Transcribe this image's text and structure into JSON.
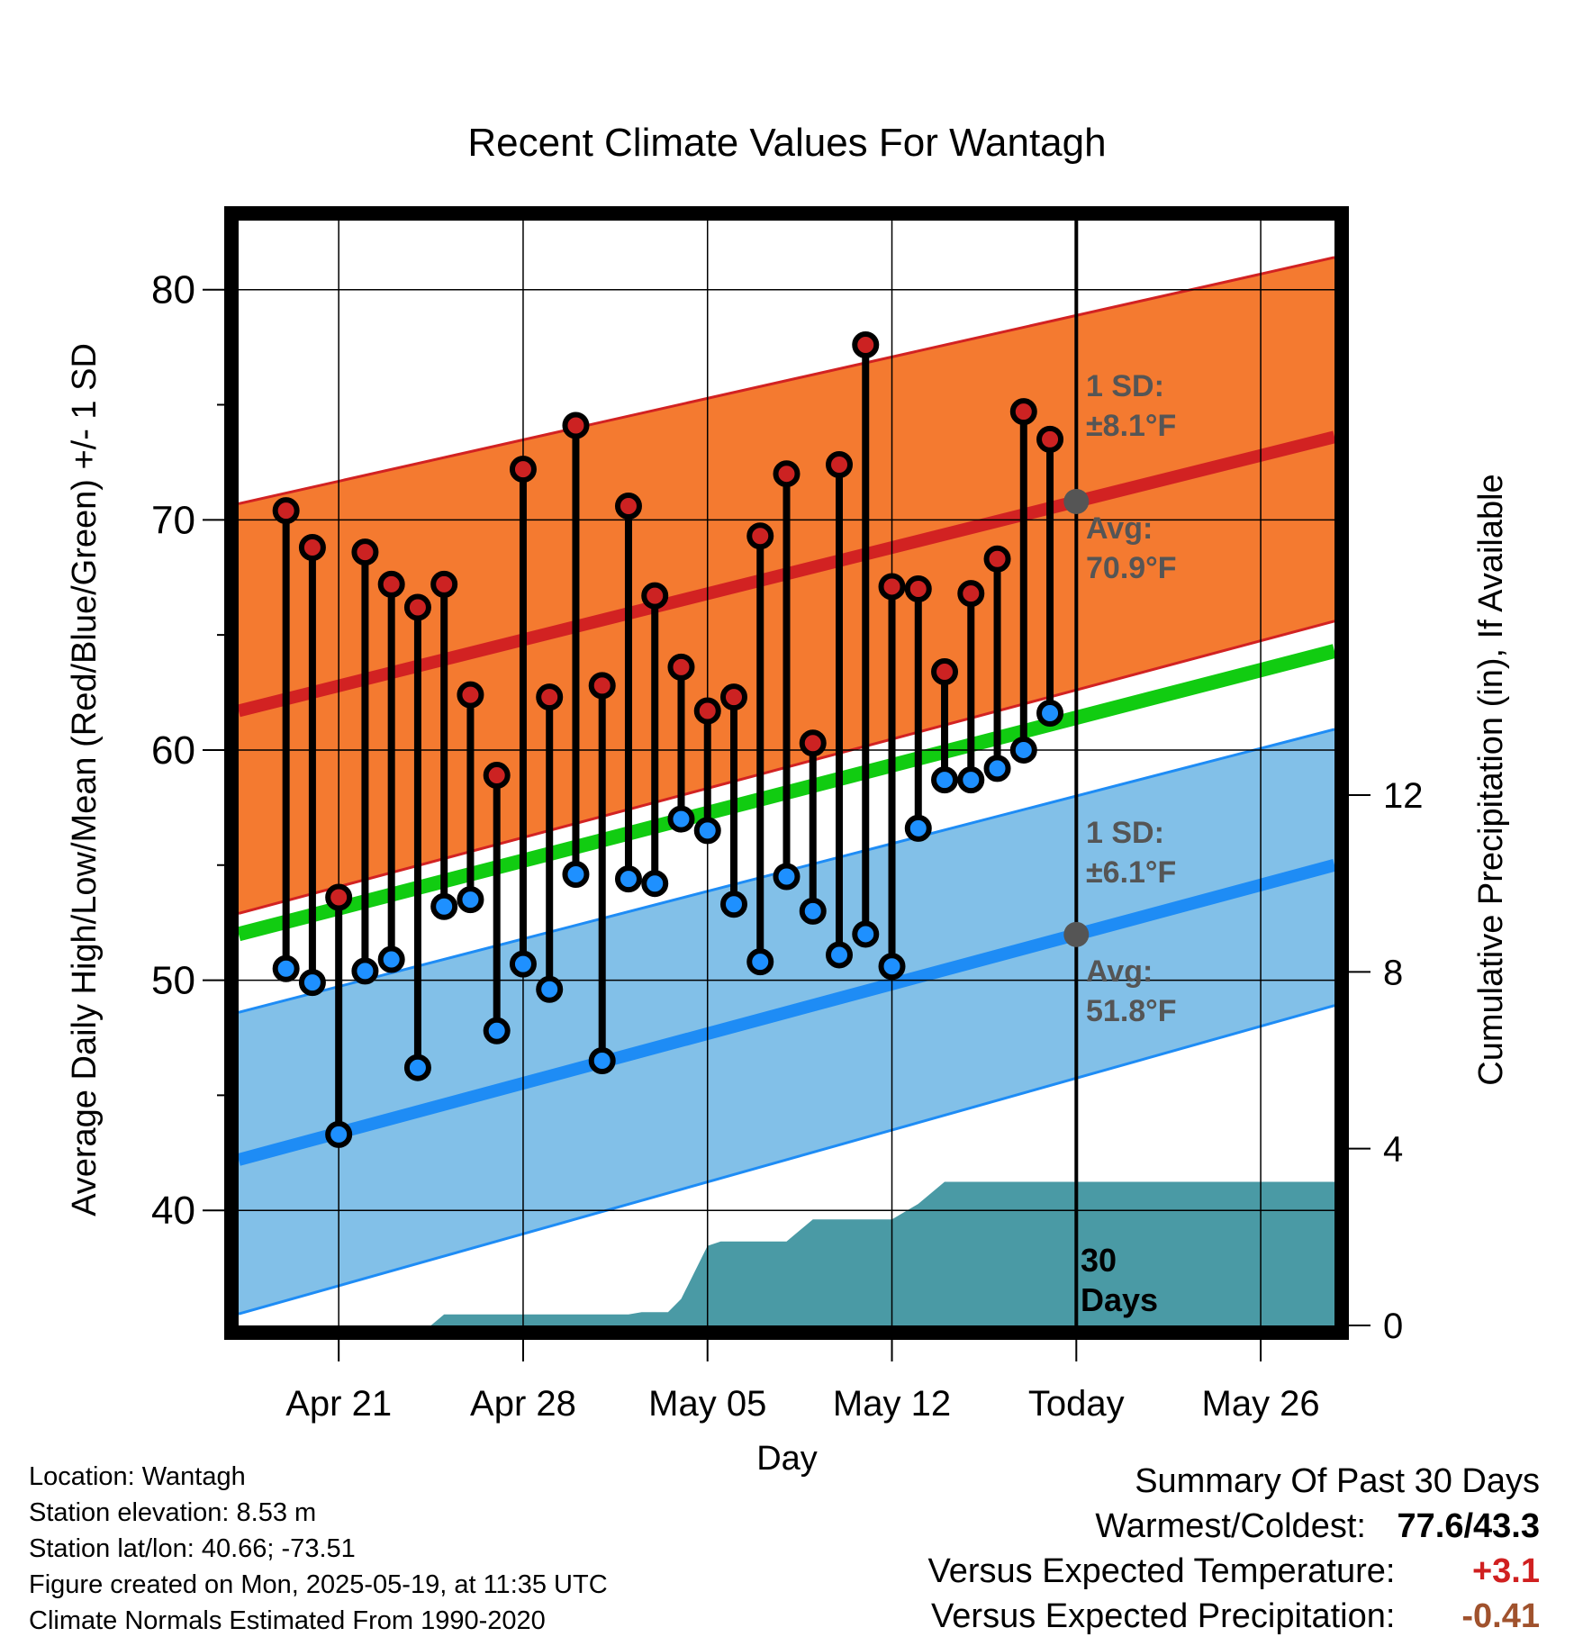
{
  "colors": {
    "high_marker": "#cc2222",
    "low_marker": "#1e90ff",
    "high_band": "#f47a30",
    "high_avg": "#d22222",
    "low_band": "#82c0e8",
    "low_avg": "#1e8cf5",
    "mean_line": "#11cc11",
    "precip_fill": "#4a9aa5",
    "today_dot": "#555555",
    "warm_anomaly": "#d02020",
    "precip_anomaly": "#a0522d"
  },
  "chart_data": {
    "type": "line",
    "title": "Recent Climate Values For Wantagh",
    "xlabel": "Day",
    "ylabel": "Average Daily High/Low/Mean (Red/Blue/Green) +/- 1 SD",
    "y2label": "Cumulative Precipitation (in), If Available",
    "ylim": [
      35,
      83
    ],
    "y2lim": [
      0,
      25
    ],
    "yticks": [
      40,
      50,
      60,
      70,
      80
    ],
    "y2ticks": [
      0,
      4,
      8,
      12
    ],
    "x_range_days": [
      -1.8,
      39.8
    ],
    "xticks": [
      {
        "day": 2,
        "label": "Apr 21"
      },
      {
        "day": 9,
        "label": "Apr 28"
      },
      {
        "day": 16,
        "label": "May 05"
      },
      {
        "day": 23,
        "label": "May 12"
      },
      {
        "day": 30,
        "label": "Today"
      },
      {
        "day": 37,
        "label": "May 26"
      }
    ],
    "today_day": 30,
    "grid": true,
    "normals": {
      "high_avg": {
        "start": 61.7,
        "end": 73.6
      },
      "high_upper": {
        "start": 70.7,
        "end": 81.4
      },
      "high_lower": {
        "start": 52.9,
        "end": 65.6
      },
      "low_avg": {
        "start": 42.2,
        "end": 55.0
      },
      "low_upper": {
        "start": 48.6,
        "end": 60.9
      },
      "low_lower": {
        "start": 35.5,
        "end": 48.9
      },
      "mean_avg": {
        "start": 52.0,
        "end": 64.3
      }
    },
    "days": [
      0,
      1,
      2,
      3,
      4,
      5,
      6,
      7,
      8,
      9,
      10,
      11,
      12,
      13,
      14,
      15,
      16,
      17,
      18,
      19,
      20,
      21,
      22,
      23,
      24,
      25,
      26,
      27,
      28,
      29
    ],
    "series": [
      {
        "name": "High",
        "values": [
          70.4,
          68.8,
          53.6,
          68.6,
          67.2,
          66.2,
          67.2,
          62.4,
          58.9,
          72.2,
          62.3,
          74.1,
          62.8,
          70.6,
          66.7,
          63.6,
          61.7,
          62.3,
          69.3,
          72.0,
          60.3,
          72.4,
          77.6,
          67.1,
          67.0,
          63.4,
          66.8,
          68.3,
          74.7,
          73.5
        ]
      },
      {
        "name": "Low",
        "values": [
          50.5,
          49.9,
          43.3,
          50.4,
          50.9,
          46.2,
          53.2,
          53.5,
          47.8,
          50.7,
          49.6,
          54.6,
          46.5,
          54.4,
          54.2,
          57.0,
          56.5,
          53.3,
          50.8,
          54.5,
          53.0,
          51.1,
          52.0,
          50.6,
          56.6,
          58.7,
          58.7,
          59.2,
          60.0,
          61.6
        ]
      }
    ],
    "precip_cumulative": [
      {
        "day": 5.5,
        "value": 0.0
      },
      {
        "day": 6.0,
        "value": 0.25
      },
      {
        "day": 13.0,
        "value": 0.25
      },
      {
        "day": 13.5,
        "value": 0.3
      },
      {
        "day": 14.5,
        "value": 0.3
      },
      {
        "day": 15.0,
        "value": 0.6
      },
      {
        "day": 16.0,
        "value": 1.8
      },
      {
        "day": 16.5,
        "value": 1.9
      },
      {
        "day": 19.0,
        "value": 1.9
      },
      {
        "day": 20.0,
        "value": 2.4
      },
      {
        "day": 23.0,
        "value": 2.4
      },
      {
        "day": 24.0,
        "value": 2.75
      },
      {
        "day": 25.0,
        "value": 3.25
      },
      {
        "day": 26.0,
        "value": 3.25
      },
      {
        "day": 39.8,
        "value": 3.25
      }
    ],
    "annotations": {
      "high_sd_label": "1 SD:",
      "high_sd_value": "±8.1°F",
      "high_avg_label": "Avg:",
      "high_avg_value": "70.9°F",
      "low_sd_label": "1 SD:",
      "low_sd_value": "±6.1°F",
      "low_avg_label": "Avg:",
      "low_avg_value": "51.8°F",
      "days_label_1": "30",
      "days_label_2": "Days"
    }
  },
  "info": {
    "location": "Location: Wantagh",
    "elevation": "Station elevation: 8.53 m",
    "latlon": "Station lat/lon: 40.66; -73.51",
    "created": "Figure created on Mon, 2025-05-19, at 11:35 UTC",
    "normals": "Climate Normals Estimated From 1990-2020"
  },
  "summary": {
    "heading": "Summary Of Past 30 Days",
    "warmest_label": "Warmest/Coldest:",
    "warmest_value": "77.6/43.3",
    "temp_label": "Versus Expected Temperature:",
    "temp_value": "+3.1",
    "precip_label": "Versus Expected Precipitation:",
    "precip_value": "-0.41"
  }
}
